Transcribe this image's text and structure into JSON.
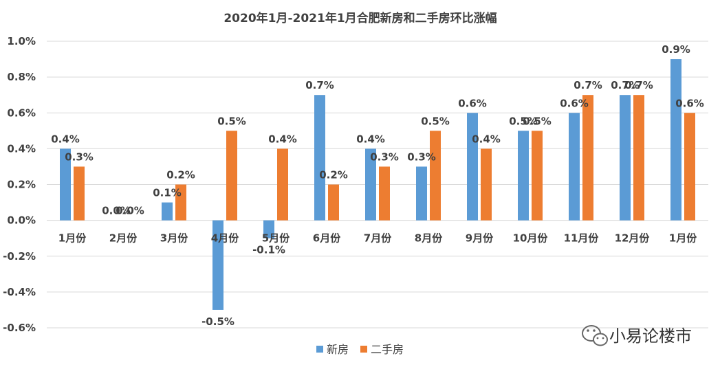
{
  "chart_data": {
    "type": "bar",
    "title": "2020年1月-2021年1月合肥新房和二手房环比涨幅",
    "categories": [
      "1月份",
      "2月份",
      "3月份",
      "4月份",
      "5月份",
      "6月份",
      "7月份",
      "8月份",
      "9月份",
      "10月份",
      "11月份",
      "12月份",
      "1月份"
    ],
    "series": [
      {
        "name": "新房",
        "color": "#5B9BD5",
        "values": [
          0.4,
          0.0,
          0.1,
          -0.5,
          -0.1,
          0.7,
          0.4,
          0.3,
          0.6,
          0.5,
          0.6,
          0.7,
          0.9
        ],
        "labels": [
          "0.4%",
          "0.0%",
          "0.1%",
          "-0.5%",
          "-0.1%",
          "0.7%",
          "0.4%",
          "0.3%",
          "0.6%",
          "0.5%",
          "0.6%",
          "0.7%",
          "0.9%"
        ]
      },
      {
        "name": "二手房",
        "color": "#ED7D31",
        "values": [
          0.3,
          0.0,
          0.2,
          0.5,
          0.4,
          0.2,
          0.3,
          0.5,
          0.4,
          0.5,
          0.7,
          0.7,
          0.6
        ],
        "labels": [
          "0.3%",
          "0.0%",
          "0.2%",
          "0.5%",
          "0.4%",
          "0.2%",
          "0.3%",
          "0.5%",
          "0.4%",
          "0.5%",
          "0.7%",
          "0.7%",
          "0.6%"
        ]
      }
    ],
    "yticks": [
      "1.0%",
      "0.8%",
      "0.6%",
      "0.4%",
      "0.2%",
      "0.0%",
      "-0.2%",
      "-0.4%",
      "-0.6%"
    ],
    "ytick_values": [
      1.0,
      0.8,
      0.6,
      0.4,
      0.2,
      0.0,
      -0.2,
      -0.4,
      -0.6
    ],
    "ylim": [
      -0.6,
      1.0
    ],
    "grid": true,
    "legend": "bottom-center"
  },
  "watermark": {
    "text": "小易论楼市",
    "icon": "wechat-icon"
  }
}
